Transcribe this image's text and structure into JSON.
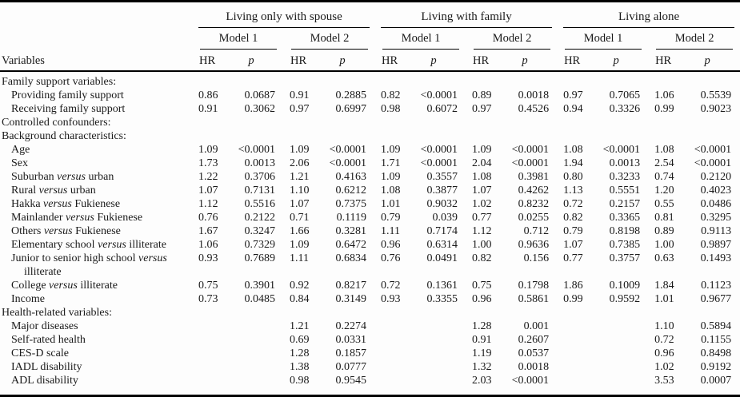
{
  "table": {
    "variables_header": "Variables",
    "hr_label": "HR",
    "p_label": "p",
    "groups": [
      {
        "label": "Living only with spouse",
        "models": [
          {
            "label": "Model 1"
          },
          {
            "label": "Model 2"
          }
        ]
      },
      {
        "label": "Living with family",
        "models": [
          {
            "label": "Model 1"
          },
          {
            "label": "Model 2"
          }
        ]
      },
      {
        "label": "Living alone",
        "models": [
          {
            "label": "Model 1"
          },
          {
            "label": "Model 2"
          }
        ]
      }
    ],
    "rows": [
      {
        "label": "Family support variables:",
        "indent": 0,
        "values": [
          "",
          "",
          "",
          "",
          "",
          "",
          "",
          "",
          "",
          "",
          "",
          ""
        ]
      },
      {
        "label": "Providing family support",
        "indent": 1,
        "values": [
          "0.86",
          "0.0687",
          "0.91",
          "0.2885",
          "0.82",
          "<0.0001",
          "0.89",
          "0.0018",
          "0.97",
          "0.7065",
          "1.06",
          "0.5539"
        ]
      },
      {
        "label": "Receiving family support",
        "indent": 1,
        "values": [
          "0.91",
          "0.3062",
          "0.97",
          "0.6997",
          "0.98",
          "0.6072",
          "0.97",
          "0.4526",
          "0.94",
          "0.3326",
          "0.99",
          "0.9023"
        ]
      },
      {
        "label": "Controlled confounders:",
        "indent": 0,
        "values": [
          "",
          "",
          "",
          "",
          "",
          "",
          "",
          "",
          "",
          "",
          "",
          ""
        ]
      },
      {
        "label": "Background characteristics:",
        "indent": 0,
        "values": [
          "",
          "",
          "",
          "",
          "",
          "",
          "",
          "",
          "",
          "",
          "",
          ""
        ]
      },
      {
        "label": "Age",
        "indent": 1,
        "values": [
          "1.09",
          "<0.0001",
          "1.09",
          "<0.0001",
          "1.09",
          "<0.0001",
          "1.09",
          "<0.0001",
          "1.08",
          "<0.0001",
          "1.08",
          "<0.0001"
        ]
      },
      {
        "label": "Sex",
        "indent": 1,
        "values": [
          "1.73",
          "0.0013",
          "2.06",
          "<0.0001",
          "1.71",
          "<0.0001",
          "2.04",
          "<0.0001",
          "1.94",
          "0.0013",
          "2.54",
          "<0.0001"
        ]
      },
      {
        "label": "Suburban *versus* urban",
        "indent": 1,
        "values": [
          "1.22",
          "0.3706",
          "1.21",
          "0.4163",
          "1.09",
          "0.3557",
          "1.08",
          "0.3981",
          "0.80",
          "0.3233",
          "0.74",
          "0.2120"
        ]
      },
      {
        "label": "Rural *versus* urban",
        "indent": 1,
        "values": [
          "1.07",
          "0.7131",
          "1.10",
          "0.6212",
          "1.08",
          "0.3877",
          "1.07",
          "0.4262",
          "1.13",
          "0.5551",
          "1.20",
          "0.4023"
        ]
      },
      {
        "label": "Hakka *versus* Fukienese",
        "indent": 1,
        "values": [
          "1.12",
          "0.5516",
          "1.07",
          "0.7375",
          "1.01",
          "0.9032",
          "1.02",
          "0.8232",
          "0.72",
          "0.2157",
          "0.55",
          "0.0486"
        ]
      },
      {
        "label": "Mainlander *versus* Fukienese",
        "indent": 1,
        "values": [
          "0.76",
          "0.2122",
          "0.71",
          "0.1119",
          "0.79",
          "0.039",
          "0.77",
          "0.0255",
          "0.82",
          "0.3365",
          "0.81",
          "0.3295"
        ]
      },
      {
        "label": "Others *versus* Fukienese",
        "indent": 1,
        "values": [
          "1.67",
          "0.3247",
          "1.66",
          "0.3281",
          "1.11",
          "0.7174",
          "1.12",
          "0.712",
          "0.79",
          "0.8198",
          "0.89",
          "0.9113"
        ]
      },
      {
        "label": "Elementary school *versus* illiterate",
        "indent": 1,
        "values": [
          "1.06",
          "0.7329",
          "1.09",
          "0.6472",
          "0.96",
          "0.6314",
          "1.00",
          "0.9636",
          "1.07",
          "0.7385",
          "1.00",
          "0.9897"
        ]
      },
      {
        "label": "Junior to senior high school *versus* illiterate",
        "indent": 1,
        "values": [
          "0.93",
          "0.7689",
          "1.11",
          "0.6834",
          "0.76",
          "0.0491",
          "0.82",
          "0.156",
          "0.77",
          "0.3757",
          "0.63",
          "0.1493"
        ]
      },
      {
        "label": "College *versus* illiterate",
        "indent": 1,
        "values": [
          "0.75",
          "0.3901",
          "0.92",
          "0.8217",
          "0.72",
          "0.1361",
          "0.75",
          "0.1798",
          "1.86",
          "0.1009",
          "1.84",
          "0.1123"
        ]
      },
      {
        "label": "Income",
        "indent": 1,
        "values": [
          "0.73",
          "0.0485",
          "0.84",
          "0.3149",
          "0.93",
          "0.3355",
          "0.96",
          "0.5861",
          "0.99",
          "0.9592",
          "1.01",
          "0.9677"
        ]
      },
      {
        "label": "Health-related variables:",
        "indent": 0,
        "values": [
          "",
          "",
          "",
          "",
          "",
          "",
          "",
          "",
          "",
          "",
          "",
          ""
        ]
      },
      {
        "label": "Major diseases",
        "indent": 1,
        "values": [
          "",
          "",
          "1.21",
          "0.2274",
          "",
          "",
          "1.28",
          "0.001",
          "",
          "",
          "1.10",
          "0.5894"
        ]
      },
      {
        "label": "Self-rated health",
        "indent": 1,
        "values": [
          "",
          "",
          "0.69",
          "0.0331",
          "",
          "",
          "0.91",
          "0.2607",
          "",
          "",
          "0.72",
          "0.1155"
        ]
      },
      {
        "label": "CES-D scale",
        "indent": 1,
        "values": [
          "",
          "",
          "1.28",
          "0.1857",
          "",
          "",
          "1.19",
          "0.0537",
          "",
          "",
          "0.96",
          "0.8498"
        ]
      },
      {
        "label": "IADL disability",
        "indent": 1,
        "values": [
          "",
          "",
          "1.38",
          "0.0777",
          "",
          "",
          "1.32",
          "0.0018",
          "",
          "",
          "1.02",
          "0.9192"
        ]
      },
      {
        "label": "ADL disability",
        "indent": 1,
        "values": [
          "",
          "",
          "0.98",
          "0.9545",
          "",
          "",
          "2.03",
          "<0.0001",
          "",
          "",
          "3.53",
          "0.0007"
        ]
      }
    ]
  }
}
